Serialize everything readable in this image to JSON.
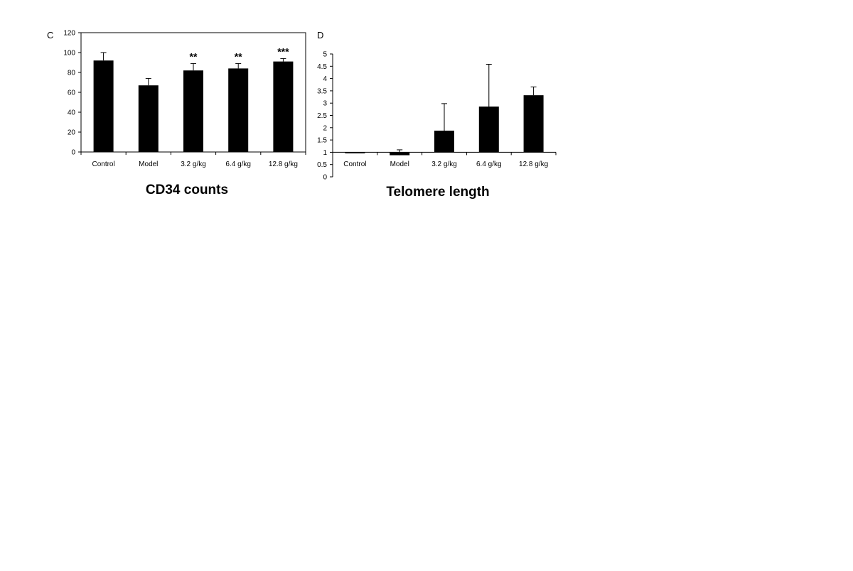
{
  "chart_data": [
    {
      "panel_label": "C",
      "type": "bar",
      "title": "CD34 counts",
      "categories": [
        "Control",
        "Model",
        "3.2 g/kg",
        "6.4 g/kg",
        "12.8 g/kg"
      ],
      "values": [
        92,
        67,
        82,
        84,
        91
      ],
      "errors": [
        8,
        7,
        7,
        5,
        3
      ],
      "annotations": [
        "",
        "",
        "**",
        "**",
        "***"
      ],
      "ylim": [
        0,
        120
      ],
      "yticks": [
        0,
        20,
        40,
        60,
        80,
        100,
        120
      ],
      "ytick_labels": [
        "0",
        "20",
        "40",
        "60",
        "80",
        "100",
        "120"
      ],
      "box": true,
      "grid": false
    },
    {
      "panel_label": "D",
      "type": "bar",
      "title": "Telomere length",
      "categories": [
        "Control",
        "Model",
        "3.2 g/kg",
        "6.4 g/kg",
        "12.8 g/kg"
      ],
      "values": [
        1,
        0.88,
        1.88,
        2.86,
        3.32
      ],
      "errors": [
        0,
        0.22,
        1.1,
        1.72,
        0.34
      ],
      "baseline": 1,
      "ylim": [
        0,
        5
      ],
      "yticks": [
        0,
        0.5,
        1,
        1.5,
        2,
        2.5,
        3,
        3.5,
        4,
        4.5,
        5
      ],
      "ytick_labels": [
        "0",
        "0.5",
        "1",
        "1.5",
        "2",
        "2.5",
        "3",
        "3.5",
        "4",
        "4.5",
        "5"
      ],
      "box": false,
      "grid": false
    }
  ]
}
